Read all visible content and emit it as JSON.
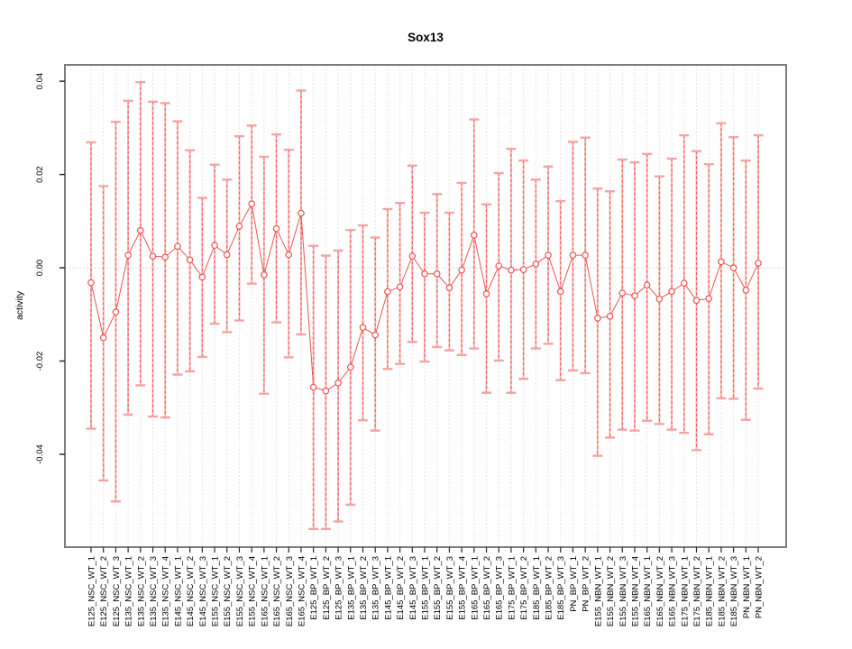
{
  "title": "Sox13",
  "colors": {
    "series": "#ef5350",
    "cap": "#f5a3a3",
    "stem_underlay": "#f8b7b7",
    "grid": "#dcdcdc",
    "zero_line": "#cfcfcf",
    "box_border": "#7d7d7d",
    "tick": "#2b2b2b",
    "text": "#000000",
    "background": "#ffffff"
  },
  "chart_data": {
    "type": "line",
    "title": "Sox13",
    "xlabel": "",
    "ylabel": "activity",
    "ylim": [
      -0.0599,
      0.0435
    ],
    "yticks": [
      -0.04,
      -0.02,
      0,
      0.02,
      0.04
    ],
    "ytick_labels": [
      "-0.04",
      "-0.02",
      "0.00",
      "0.02",
      "0.04"
    ],
    "grid": "dotted vertical gridline per category; dotted horizontal line at y=0",
    "legend_position": "none",
    "marker": "open-circle",
    "error_bars": true,
    "categories": [
      "E125_NSC_WT_1",
      "E125_NSC_WT_2",
      "E125_NSC_WT_3",
      "E135_NSC_WT_1",
      "E135_NSC_WT_2",
      "E135_NSC_WT_3",
      "E135_NSC_WT_4",
      "E145_NSC_WT_1",
      "E145_NSC_WT_2",
      "E145_NSC_WT_3",
      "E155_NSC_WT_1",
      "E155_NSC_WT_2",
      "E155_NSC_WT_3",
      "E155_NSC_WT_4",
      "E165_NSC_WT_1",
      "E165_NSC_WT_2",
      "E165_NSC_WT_3",
      "E165_NSC_WT_4",
      "E125_BP_WT_1",
      "E125_BP_WT_2",
      "E125_BP_WT_3",
      "E135_BP_WT_1",
      "E135_BP_WT_2",
      "E135_BP_WT_3",
      "E145_BP_WT_1",
      "E145_BP_WT_2",
      "E145_BP_WT_3",
      "E155_BP_WT_1",
      "E155_BP_WT_2",
      "E155_BP_WT_3",
      "E155_BP_WT_4",
      "E165_BP_WT_1",
      "E165_BP_WT_2",
      "E165_BP_WT_3",
      "E175_BP_WT_1",
      "E175_BP_WT_2",
      "E185_BP_WT_1",
      "E185_BP_WT_2",
      "E185_BP_WT_3",
      "PN_BP_WT_1",
      "PN_BP_WT_2",
      "E155_NBN_WT_1",
      "E155_NBN_WT_2",
      "E155_NBN_WT_3",
      "E155_NBN_WT_4",
      "E165_NBN_WT_1",
      "E165_NBN_WT_2",
      "E165_NBN_WT_3",
      "E175_NBN_WT_1",
      "E175_NBN_WT_2",
      "E185_NBN_WT_1",
      "E185_NBN_WT_2",
      "E185_NBN_WT_3",
      "PN_NBN_WT_1",
      "PN_NBN_WT_2"
    ],
    "values": [
      -0.0032,
      -0.015,
      -0.0095,
      0.0027,
      0.008,
      0.0025,
      0.0023,
      0.0046,
      0.0017,
      -0.002,
      0.0048,
      0.0028,
      0.0089,
      0.0137,
      -0.0015,
      0.0084,
      0.0028,
      0.0117,
      -0.0256,
      -0.0264,
      -0.0247,
      -0.0213,
      -0.0128,
      -0.0144,
      -0.0051,
      -0.0041,
      0.0025,
      -0.0013,
      -0.0013,
      -0.0043,
      -0.0005,
      0.007,
      -0.0056,
      0.0004,
      -0.0005,
      -0.0004,
      0.0008,
      0.0027,
      -0.0051,
      0.0027,
      0.0027,
      -0.0108,
      -0.0104,
      -0.0054,
      -0.006,
      -0.0037,
      -0.0067,
      -0.0051,
      -0.0033,
      -0.007,
      -0.0066,
      0.0013,
      0.0,
      -0.0048,
      0.001
    ],
    "error_low": [
      -0.0345,
      -0.0456,
      -0.0501,
      -0.0315,
      -0.0252,
      -0.0319,
      -0.0321,
      -0.0229,
      -0.0222,
      -0.0191,
      -0.012,
      -0.0138,
      -0.0113,
      -0.0034,
      -0.027,
      -0.0117,
      -0.0192,
      -0.0143,
      -0.056,
      -0.056,
      -0.0544,
      -0.0508,
      -0.0327,
      -0.0349,
      -0.0217,
      -0.0206,
      -0.0159,
      -0.0201,
      -0.017,
      -0.0177,
      -0.0187,
      -0.0173,
      -0.0268,
      -0.0199,
      -0.0268,
      -0.0238,
      -0.0173,
      -0.0163,
      -0.0241,
      -0.022,
      -0.0226,
      -0.0403,
      -0.0364,
      -0.0347,
      -0.0349,
      -0.0328,
      -0.0335,
      -0.0347,
      -0.0354,
      -0.0391,
      -0.0357,
      -0.028,
      -0.0281,
      -0.0326,
      -0.0259
    ],
    "error_high": [
      0.0269,
      0.0175,
      0.0313,
      0.0358,
      0.0398,
      0.0356,
      0.0353,
      0.0314,
      0.0252,
      0.015,
      0.0221,
      0.0189,
      0.0282,
      0.0305,
      0.0238,
      0.0286,
      0.0253,
      0.038,
      0.0047,
      0.0026,
      0.0037,
      0.0081,
      0.0091,
      0.0065,
      0.0126,
      0.0139,
      0.0219,
      0.0118,
      0.0158,
      0.0118,
      0.0182,
      0.0318,
      0.0136,
      0.0203,
      0.0255,
      0.023,
      0.0189,
      0.0217,
      0.0143,
      0.027,
      0.0279,
      0.017,
      0.0164,
      0.0232,
      0.0226,
      0.0244,
      0.0196,
      0.0234,
      0.0284,
      0.025,
      0.0222,
      0.031,
      0.028,
      0.023,
      0.0284
    ]
  }
}
